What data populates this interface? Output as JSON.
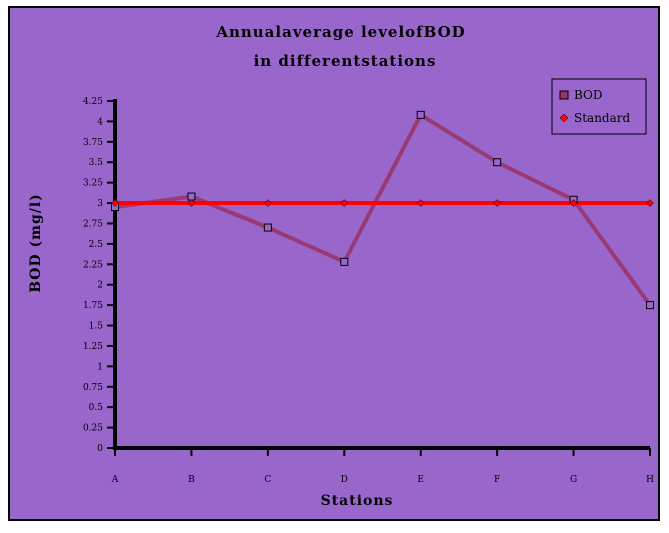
{
  "chart_data": {
    "type": "line",
    "title_line1": "Annualaverage levelofBOD",
    "title_line2": "in differentstations",
    "xlabel": "Stations",
    "ylabel": "BOD (mg/l)",
    "categories": [
      "A",
      "B",
      "C",
      "D",
      "E",
      "F",
      "G",
      "H"
    ],
    "ylim": [
      0,
      4.25
    ],
    "yticks": [
      "0",
      "0.25",
      "0.5",
      "0.75",
      "1",
      "1.25",
      "1.5",
      "1.75",
      "2",
      "2.25",
      "2.5",
      "2.75",
      "3",
      "3.25",
      "3.5",
      "3.75",
      "4",
      "4.25"
    ],
    "grid": false,
    "legend_position": "top-right",
    "series": [
      {
        "name": "BOD",
        "values": [
          2.95,
          3.08,
          2.7,
          2.28,
          4.08,
          3.5,
          3.04,
          1.75
        ],
        "color": "#993366",
        "marker": "square"
      },
      {
        "name": "Standard",
        "values": [
          3,
          3,
          3,
          3,
          3,
          3,
          3,
          3
        ],
        "color": "#ff0000",
        "marker": "diamond"
      }
    ],
    "background_color": "#9966cc"
  }
}
